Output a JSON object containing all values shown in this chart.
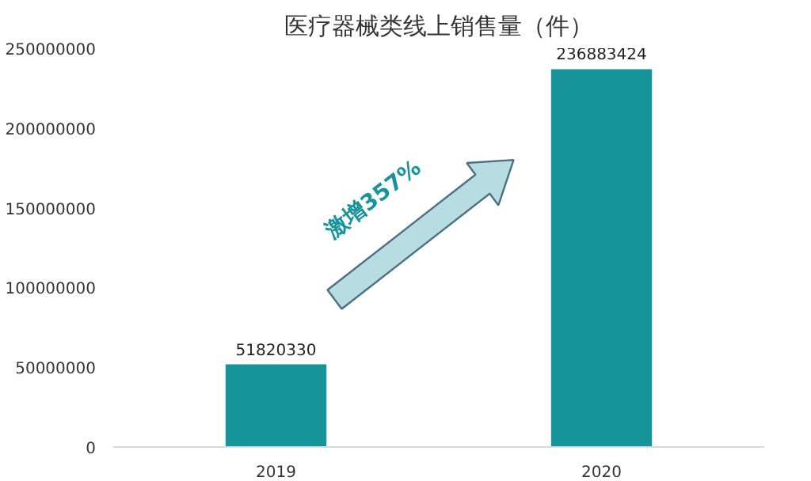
{
  "chart_data": {
    "type": "bar",
    "title": "医疗器械类线上销售量（件）",
    "categories": [
      "2019",
      "2020"
    ],
    "values": [
      51820330,
      236883424
    ],
    "color": "#17939a",
    "ylim": [
      0,
      250000000
    ],
    "yticks": [
      0,
      50000000,
      100000000,
      150000000,
      200000000,
      250000000
    ],
    "data_labels": true,
    "grid": false,
    "annotations": [
      "激增357%"
    ]
  }
}
